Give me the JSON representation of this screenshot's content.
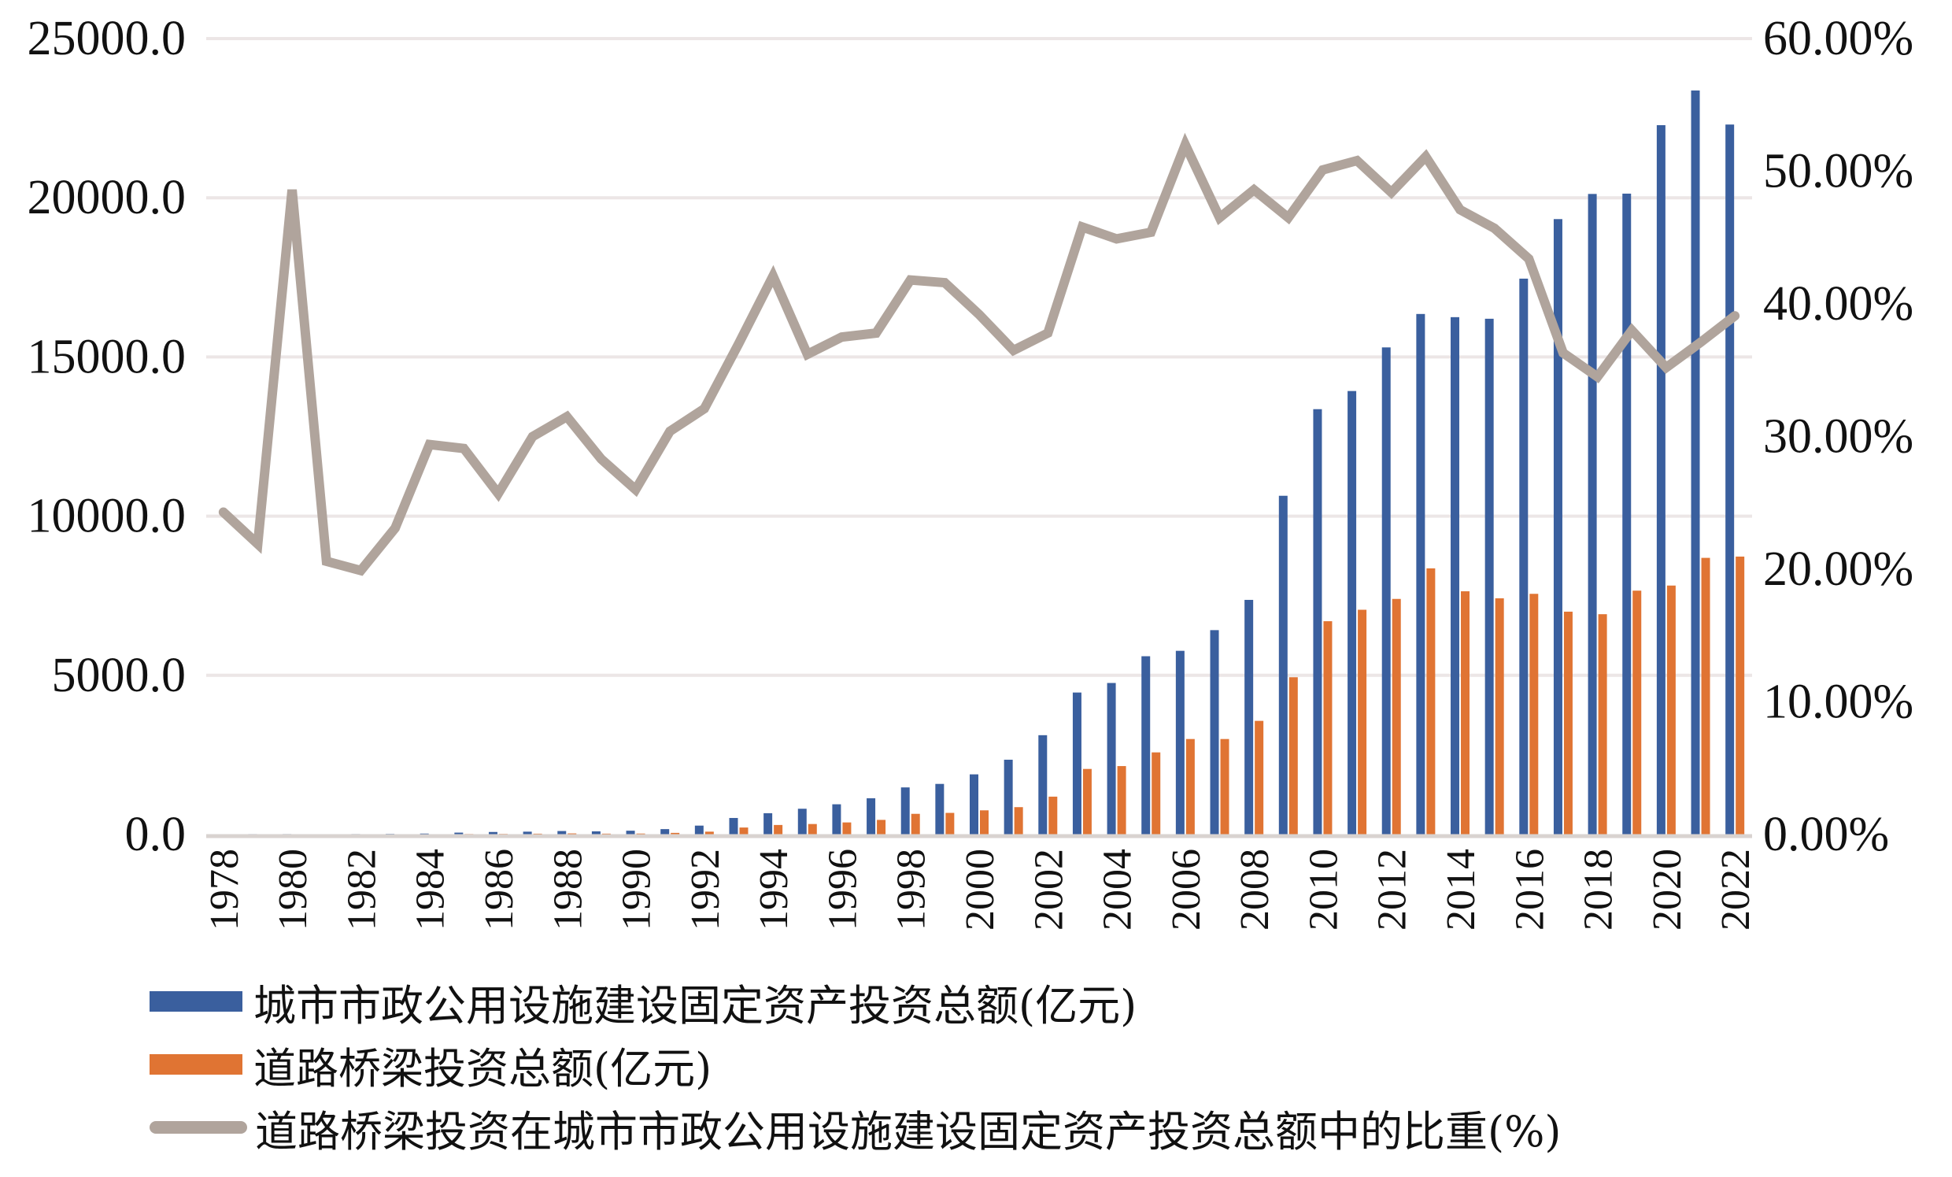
{
  "chart_data": {
    "type": "bar",
    "title": "",
    "xlabel": "",
    "ylabel": "",
    "ylim": [
      0,
      25000
    ],
    "y2lim": [
      0,
      60
    ],
    "grid": true,
    "legend_position": "bottom-left",
    "left_ticks": [
      "0.0",
      "5000.0",
      "10000.0",
      "15000.0",
      "20000.0",
      "25000.0"
    ],
    "left_tick_values": [
      0,
      5000,
      10000,
      15000,
      20000,
      25000
    ],
    "right_ticks": [
      "0.00%",
      "10.00%",
      "20.00%",
      "30.00%",
      "40.00%",
      "50.00%",
      "60.00%"
    ],
    "right_tick_values": [
      0,
      10,
      20,
      30,
      40,
      50,
      60
    ],
    "x_tick_labels": [
      "1978",
      "1980",
      "1982",
      "1984",
      "1986",
      "1988",
      "1990",
      "1992",
      "1994",
      "1996",
      "1998",
      "2000",
      "2002",
      "2004",
      "2006",
      "2008",
      "2010",
      "2012",
      "2014",
      "2016",
      "2018",
      "2020",
      "2022"
    ],
    "categories": [
      1978,
      1979,
      1980,
      1981,
      1982,
      1983,
      1984,
      1985,
      1986,
      1987,
      1988,
      1989,
      1990,
      1991,
      1992,
      1993,
      1994,
      1995,
      1996,
      1997,
      1998,
      1999,
      2000,
      2001,
      2002,
      2003,
      2004,
      2005,
      2006,
      2007,
      2008,
      2009,
      2010,
      2011,
      2012,
      2013,
      2014,
      2015,
      2016,
      2017,
      2018,
      2019,
      2020,
      2021,
      2022
    ],
    "series": [
      {
        "name": "城市市政公用设施建设固定资产投资总额(亿元)",
        "type": "bar",
        "axis": "left",
        "color": "#3a5f9e",
        "values": [
          12,
          14,
          15,
          12,
          15,
          20,
          30,
          60,
          80,
          90,
          110,
          100,
          120,
          170,
          280,
          520,
          670,
          810,
          950,
          1140,
          1480,
          1590,
          1890,
          2350,
          3120,
          4460,
          4760,
          5600,
          5770,
          6420,
          7370,
          10640,
          13360,
          13930,
          15300,
          16350,
          16250,
          16200,
          17460,
          19330,
          20120,
          20130,
          22280,
          23370,
          22300
        ]
      },
      {
        "name": "道路桥梁投资总额(亿元)",
        "type": "bar",
        "axis": "left",
        "color": "#e07433",
        "values": [
          3,
          3,
          7,
          2,
          3,
          5,
          9,
          17,
          20,
          27,
          35,
          28,
          31,
          52,
          90,
          220,
          300,
          330,
          380,
          460,
          650,
          680,
          760,
          860,
          1190,
          2060,
          2150,
          2580,
          3000,
          3000,
          3570,
          4940,
          6700,
          7060,
          7400,
          8360,
          7640,
          7420,
          7560,
          7000,
          6920,
          7660,
          7820,
          8690,
          8730
        ]
      },
      {
        "name": "道路桥梁投资在城市市政公用设施建设固定资产投资总额中的比重(%)",
        "type": "line",
        "axis": "right",
        "color": "#b0a49c",
        "values": [
          24.3,
          21.9,
          48.6,
          20.6,
          19.9,
          23.1,
          29.4,
          29.1,
          25.7,
          30.0,
          31.5,
          28.3,
          26.0,
          30.4,
          32.1,
          37.0,
          42.1,
          36.2,
          37.5,
          37.8,
          41.8,
          41.6,
          39.2,
          36.5,
          37.8,
          45.8,
          44.9,
          45.4,
          52.0,
          46.5,
          48.6,
          46.5,
          50.1,
          50.8,
          48.4,
          51.1,
          47.1,
          45.7,
          43.4,
          36.3,
          34.5,
          38.0,
          35.2,
          37.1,
          39.1
        ]
      }
    ],
    "gridline_color": "#ece6e6",
    "axis_color": "#d9d3d0"
  }
}
